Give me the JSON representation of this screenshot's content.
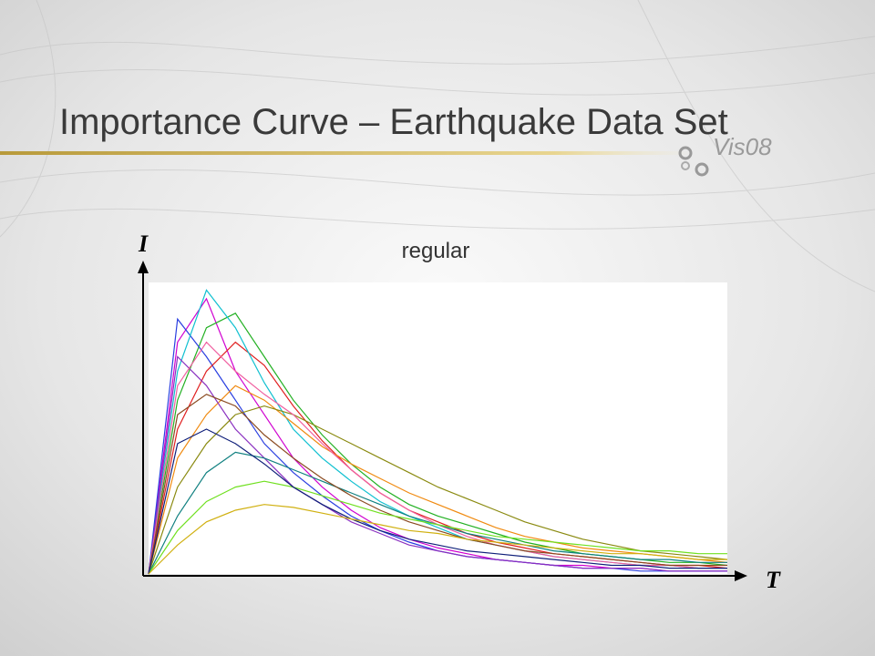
{
  "chart_data": {
    "type": "line",
    "title": "Importance Curve – Earthquake Data Set",
    "subtitle": "regular",
    "logo": "Vis08",
    "x_label": "T",
    "y_label": "I",
    "xlim": [
      0,
      100
    ],
    "ylim": [
      0,
      100
    ],
    "x": [
      0,
      5,
      10,
      15,
      20,
      25,
      30,
      35,
      40,
      45,
      50,
      55,
      60,
      65,
      70,
      75,
      80,
      85,
      90,
      95,
      100
    ],
    "series": [
      {
        "color": "#d000d0",
        "values": [
          0,
          80,
          95,
          70,
          55,
          40,
          30,
          22,
          16,
          12,
          9,
          7,
          5,
          4,
          3,
          3,
          2,
          2,
          1,
          1,
          1
        ]
      },
      {
        "color": "#22b022",
        "values": [
          0,
          60,
          85,
          90,
          75,
          60,
          48,
          38,
          30,
          24,
          20,
          17,
          14,
          11,
          9,
          7,
          6,
          5,
          4,
          4,
          3
        ]
      },
      {
        "color": "#2a3fe0",
        "values": [
          0,
          88,
          75,
          60,
          45,
          35,
          27,
          20,
          15,
          11,
          8,
          6,
          5,
          4,
          3,
          2,
          2,
          1,
          1,
          1,
          1
        ]
      },
      {
        "color": "#e02020",
        "values": [
          0,
          50,
          70,
          80,
          72,
          58,
          46,
          36,
          28,
          22,
          18,
          14,
          11,
          9,
          7,
          6,
          5,
          4,
          3,
          3,
          2
        ]
      },
      {
        "color": "#10c0d0",
        "values": [
          0,
          70,
          98,
          85,
          66,
          50,
          40,
          32,
          25,
          20,
          16,
          12,
          10,
          8,
          6,
          5,
          4,
          3,
          3,
          2,
          2
        ]
      },
      {
        "color": "#f08a10",
        "values": [
          0,
          40,
          55,
          65,
          60,
          52,
          44,
          38,
          33,
          28,
          24,
          20,
          16,
          13,
          11,
          9,
          8,
          7,
          6,
          5,
          4
        ]
      },
      {
        "color": "#8a30c0",
        "values": [
          0,
          75,
          65,
          50,
          40,
          30,
          24,
          18,
          14,
          10,
          8,
          6,
          5,
          4,
          3,
          2,
          2,
          2,
          1,
          1,
          1
        ]
      },
      {
        "color": "#8a8a10",
        "values": [
          0,
          30,
          45,
          55,
          58,
          55,
          50,
          45,
          40,
          35,
          30,
          26,
          22,
          18,
          15,
          12,
          10,
          8,
          7,
          6,
          5
        ]
      },
      {
        "color": "#f060a0",
        "values": [
          0,
          65,
          80,
          70,
          62,
          55,
          45,
          36,
          28,
          22,
          17,
          13,
          10,
          8,
          6,
          5,
          4,
          3,
          3,
          2,
          2
        ]
      },
      {
        "color": "#108080",
        "values": [
          0,
          20,
          35,
          42,
          40,
          36,
          32,
          28,
          24,
          20,
          17,
          14,
          12,
          10,
          8,
          7,
          6,
          5,
          5,
          4,
          4
        ]
      },
      {
        "color": "#8a4a20",
        "values": [
          0,
          55,
          62,
          58,
          48,
          40,
          33,
          27,
          22,
          18,
          15,
          12,
          10,
          8,
          7,
          6,
          5,
          4,
          3,
          3,
          3
        ]
      },
      {
        "color": "#70e020",
        "values": [
          0,
          15,
          25,
          30,
          32,
          30,
          27,
          24,
          21,
          19,
          17,
          15,
          13,
          12,
          11,
          10,
          9,
          8,
          8,
          7,
          7
        ]
      },
      {
        "color": "#10207a",
        "values": [
          0,
          45,
          50,
          45,
          38,
          30,
          24,
          19,
          15,
          12,
          10,
          8,
          7,
          6,
          5,
          4,
          3,
          3,
          2,
          2,
          2
        ]
      },
      {
        "color": "#d0b010",
        "values": [
          0,
          10,
          18,
          22,
          24,
          23,
          21,
          19,
          17,
          15,
          14,
          12,
          11,
          10,
          9,
          8,
          7,
          7,
          6,
          5,
          5
        ]
      }
    ]
  }
}
